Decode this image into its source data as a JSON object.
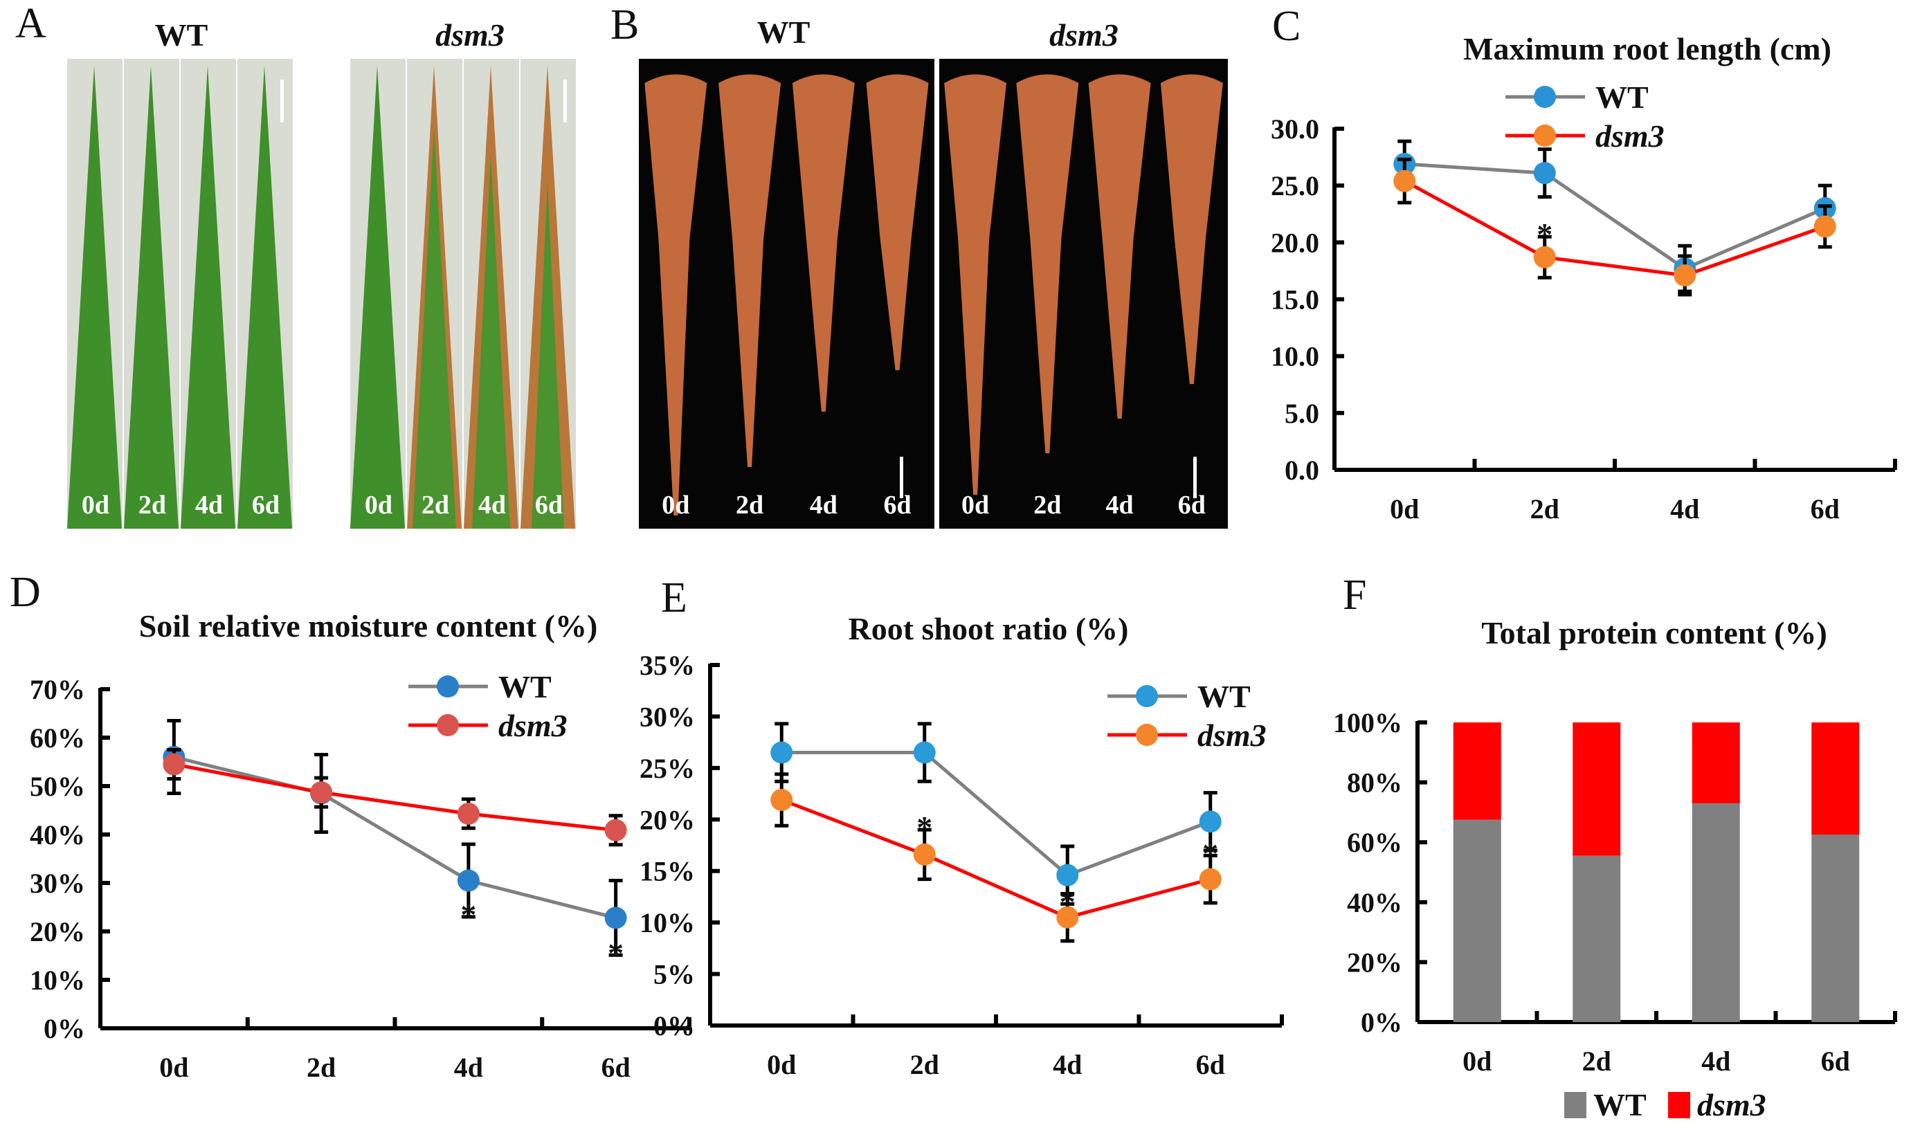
{
  "panels": {
    "A": {
      "letter": "A",
      "wt_label": "WT",
      "mutant_label": "dsm3",
      "days": [
        "0d",
        "2d",
        "4d",
        "6d"
      ]
    },
    "B": {
      "letter": "B",
      "wt_label": "WT",
      "mutant_label": "dsm3",
      "days": [
        "0d",
        "2d",
        "4d",
        "6d"
      ]
    }
  },
  "colors": {
    "wt_line": "#808080",
    "wt_marker": "#2a93d5",
    "mut_line": "#ff0000",
    "mut_marker_orange": "#f5852a",
    "mut_marker_red": "#d9534f",
    "bar_wt": "#808080",
    "bar_mut": "#ff0000"
  },
  "chart_data": [
    {
      "letter": "C",
      "type": "line",
      "title": "Maximum root length (cm)",
      "categories": [
        "0d",
        "2d",
        "4d",
        "6d"
      ],
      "ylim": [
        0,
        30
      ],
      "yticks": [
        0,
        5,
        10,
        15,
        20,
        25,
        30
      ],
      "ytick_labels": [
        "0.0",
        "5.0",
        "10.0",
        "15.0",
        "20.0",
        "25.0",
        "30.0"
      ],
      "legend": "top-right",
      "series": [
        {
          "name": "WT",
          "line": "#808080",
          "marker": "#2a93d5",
          "values": [
            26.9,
            26.1,
            17.7,
            23.0
          ],
          "errors": [
            2.0,
            2.1,
            2.0,
            2.0
          ]
        },
        {
          "name": "dsm3",
          "line": "#ff0000",
          "marker": "#f5852a",
          "values": [
            25.4,
            18.7,
            17.1,
            21.4
          ],
          "errors": [
            1.9,
            1.8,
            1.7,
            1.8
          ]
        }
      ],
      "significant": [
        "2d"
      ]
    },
    {
      "letter": "D",
      "type": "line",
      "title": "Soil relative moisture content (%)",
      "categories": [
        "0d",
        "2d",
        "4d",
        "6d"
      ],
      "ylim": [
        0,
        70
      ],
      "yticks": [
        0,
        10,
        20,
        30,
        40,
        50,
        60,
        70
      ],
      "ytick_labels": [
        "0%",
        "10%",
        "20%",
        "30%",
        "40%",
        "50%",
        "60%",
        "70%"
      ],
      "legend": "top-right",
      "series": [
        {
          "name": "WT",
          "line": "#808080",
          "marker": "#2a80c8",
          "values": [
            56.0,
            48.5,
            30.5,
            22.8
          ],
          "errors": [
            7.5,
            8.0,
            7.5,
            7.7
          ]
        },
        {
          "name": "dsm3",
          "line": "#ff0000",
          "marker": "#d9534f",
          "values": [
            54.5,
            48.7,
            44.3,
            40.9
          ],
          "errors": [
            3.0,
            3.0,
            3.0,
            3.0
          ]
        }
      ],
      "significant": [
        "4d",
        "6d"
      ]
    },
    {
      "letter": "E",
      "type": "line",
      "title": "Root shoot ratio (%)",
      "categories": [
        "0d",
        "2d",
        "4d",
        "6d"
      ],
      "ylim": [
        0,
        35
      ],
      "yticks": [
        0,
        5,
        10,
        15,
        20,
        25,
        30,
        35
      ],
      "ytick_labels": [
        "0%",
        "5%",
        "10%",
        "15%",
        "20%",
        "25%",
        "30%",
        "35%"
      ],
      "legend": "top-right",
      "series": [
        {
          "name": "WT",
          "line": "#808080",
          "marker": "#2a9ad8",
          "values": [
            26.5,
            26.5,
            14.6,
            19.8
          ],
          "errors": [
            2.8,
            2.8,
            2.8,
            2.8
          ]
        },
        {
          "name": "dsm3",
          "line": "#ff0000",
          "marker": "#f5852a",
          "values": [
            21.9,
            16.6,
            10.5,
            14.2
          ],
          "errors": [
            2.5,
            2.4,
            2.3,
            2.3
          ]
        }
      ],
      "significant": [
        "2d",
        "4d",
        "6d"
      ]
    },
    {
      "letter": "F",
      "type": "bar",
      "stacked": true,
      "title": "Total protein content (%)",
      "categories": [
        "0d",
        "2d",
        "4d",
        "6d"
      ],
      "ylim": [
        0,
        100
      ],
      "yticks": [
        0,
        20,
        40,
        60,
        80,
        100
      ],
      "ytick_labels": [
        "0%",
        "20%",
        "40%",
        "60%",
        "80%",
        "100%"
      ],
      "legend": "bottom",
      "series": [
        {
          "name": "WT",
          "color": "#808080",
          "values": [
            67.5,
            55.5,
            73.0,
            62.5
          ]
        },
        {
          "name": "dsm3",
          "color": "#ff0000",
          "values": [
            32.5,
            44.5,
            27.0,
            37.5
          ]
        }
      ]
    }
  ]
}
